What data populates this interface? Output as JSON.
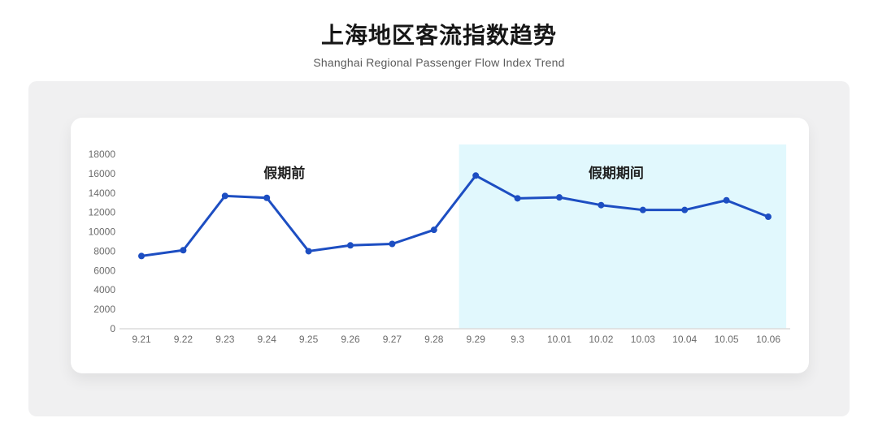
{
  "page": {
    "title": "上海地区客流指数趋势",
    "subtitle": "Shanghai Regional Passenger Flow Index Trend"
  },
  "chart_data": {
    "type": "line",
    "title": "上海地区客流指数趋势",
    "subtitle": "Shanghai Regional Passenger Flow Index Trend",
    "categories": [
      "9.21",
      "9.22",
      "9.23",
      "9.24",
      "9.25",
      "9.26",
      "9.27",
      "9.28",
      "9.29",
      "9.3",
      "10.01",
      "10.02",
      "10.03",
      "10.04",
      "10.05",
      "10.06"
    ],
    "values": [
      7500,
      8100,
      13700,
      13500,
      8000,
      8600,
      8750,
      10200,
      15800,
      13450,
      13550,
      12750,
      12250,
      12250,
      13250,
      11550
    ],
    "ylabel": "",
    "xlabel": "",
    "ylim": [
      0,
      18000
    ],
    "ytick_step": 2000,
    "grid": false,
    "legend": "none",
    "line_color": "#1d4ec2",
    "marker_color": "#1d4ec2",
    "axis_color": "#dcdcdc",
    "regions": [
      {
        "label": "假期前",
        "highlight": false,
        "from": 0,
        "to": 7.6,
        "label_at": 3.42,
        "fill": "none"
      },
      {
        "label": "假期期间",
        "highlight": true,
        "from": 7.6,
        "to": 15.43,
        "label_at": 11.36,
        "fill": "#e1f8fd"
      }
    ]
  }
}
